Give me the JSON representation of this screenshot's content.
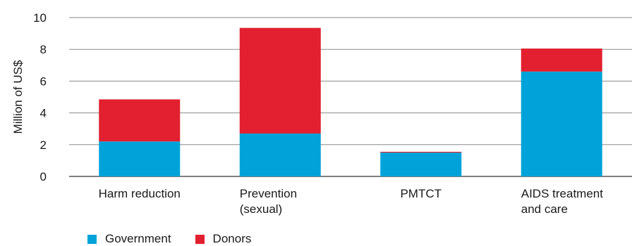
{
  "chart_data": {
    "type": "bar",
    "stacked": true,
    "categories": [
      [
        "Harm reduction"
      ],
      [
        "Prevention",
        "(sexual)"
      ],
      [
        "PMTCT"
      ],
      [
        "AIDS treatment",
        "and care"
      ]
    ],
    "series": [
      {
        "name": "Government",
        "color": "#00a3d9",
        "values": [
          2.2,
          2.7,
          1.5,
          6.6
        ]
      },
      {
        "name": "Donors",
        "color": "#e2202f",
        "values": [
          2.65,
          6.65,
          0.05,
          1.45
        ]
      }
    ],
    "ylabel": "Million of US$",
    "ylim": [
      0,
      10
    ],
    "yticks": [
      0,
      2,
      4,
      6,
      8,
      10
    ],
    "grid": true,
    "legend_position": "bottom-left"
  }
}
